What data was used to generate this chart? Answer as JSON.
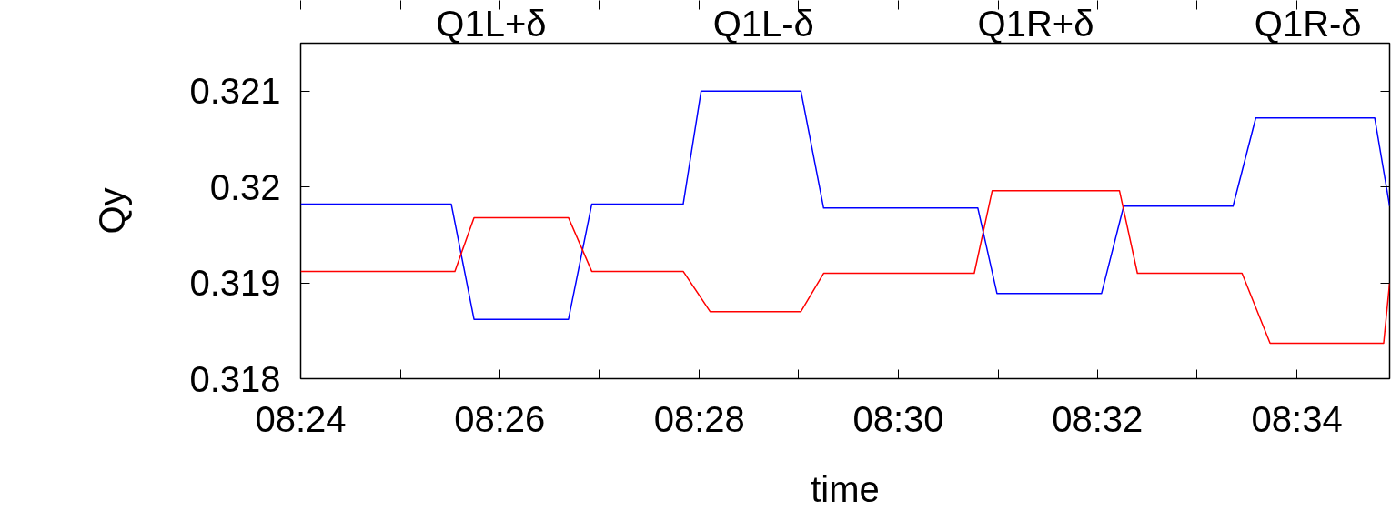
{
  "chart_data": {
    "type": "line",
    "xlabel": "time",
    "ylabel": "Qy",
    "xlim": [
      8.4,
      8.5822
    ],
    "ylim": [
      0.318,
      0.3215
    ],
    "xticks": [
      {
        "value": 8.4,
        "label": "08:24"
      },
      {
        "value": 8.4167,
        "label": null
      },
      {
        "value": 8.4333,
        "label": "08:26"
      },
      {
        "value": 8.45,
        "label": null
      },
      {
        "value": 8.4667,
        "label": "08:28"
      },
      {
        "value": 8.4833,
        "label": null
      },
      {
        "value": 8.5,
        "label": "08:30"
      },
      {
        "value": 8.5167,
        "label": null
      },
      {
        "value": 8.5333,
        "label": "08:32"
      },
      {
        "value": 8.55,
        "label": null
      },
      {
        "value": 8.5667,
        "label": "08:34"
      }
    ],
    "yticks": [
      0.318,
      0.319,
      0.32,
      0.321
    ],
    "grid": false,
    "legend": false,
    "marker": "none",
    "line_style": "solid",
    "annotations": [
      "Q1L+δ",
      "Q1L-δ",
      "Q1R+δ",
      "Q1R-δ"
    ],
    "series": [
      {
        "color": "#0000ff",
        "x": [
          8.4,
          8.4252,
          8.429,
          8.4448,
          8.4487,
          8.464,
          8.467,
          8.4837,
          8.4875,
          8.5133,
          8.5165,
          8.534,
          8.5377,
          8.556,
          8.5598,
          8.5797,
          8.5822
        ],
        "values": [
          0.31982,
          0.31982,
          0.31862,
          0.31862,
          0.31982,
          0.31982,
          0.321,
          0.321,
          0.31978,
          0.31978,
          0.31889,
          0.31889,
          0.3198,
          0.3198,
          0.32072,
          0.32072,
          0.3198
        ]
      },
      {
        "color": "#ff0000",
        "x": [
          8.4,
          8.4258,
          8.429,
          8.4448,
          8.4487,
          8.464,
          8.4685,
          8.4837,
          8.4875,
          8.5127,
          8.5157,
          8.537,
          8.54,
          8.5575,
          8.5622,
          8.5812,
          8.5822
        ],
        "values": [
          0.31912,
          0.31912,
          0.31968,
          0.31968,
          0.31912,
          0.31912,
          0.3187,
          0.3187,
          0.3191,
          0.3191,
          0.31996,
          0.31996,
          0.3191,
          0.3191,
          0.31837,
          0.31837,
          0.319
        ]
      }
    ]
  }
}
